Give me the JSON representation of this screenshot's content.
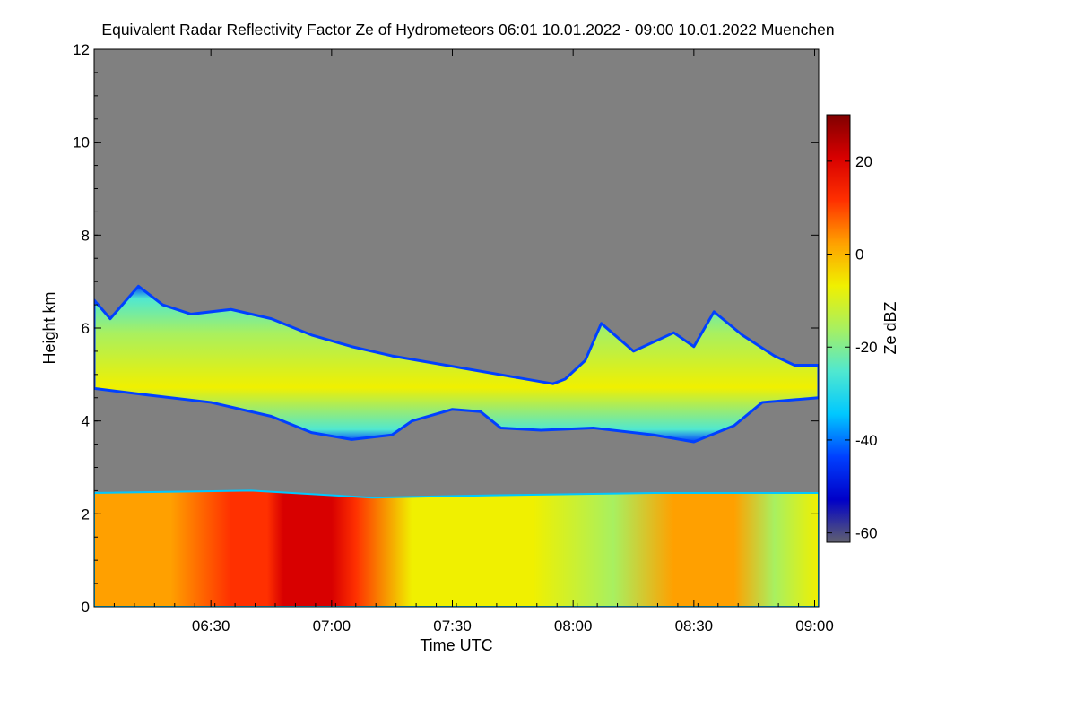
{
  "chart_data": {
    "type": "heatmap",
    "title": "Equivalent Radar Reflectivity Factor Ze of Hydrometeors   06:01 10.01.2022 - 09:00 10.01.2022 Muenchen",
    "xlabel": "Time UTC",
    "ylabel": "Height km",
    "x_range_minutes": [
      361,
      541
    ],
    "ylim": [
      0,
      12
    ],
    "x_ticks": [
      {
        "minute": 390,
        "label": "06:30"
      },
      {
        "minute": 420,
        "label": "07:00"
      },
      {
        "minute": 450,
        "label": "07:30"
      },
      {
        "minute": 480,
        "label": "08:00"
      },
      {
        "minute": 510,
        "label": "08:30"
      },
      {
        "minute": 540,
        "label": "09:00"
      }
    ],
    "y_ticks": [
      {
        "value": 0,
        "label": "0"
      },
      {
        "value": 2,
        "label": "2"
      },
      {
        "value": 4,
        "label": "4"
      },
      {
        "value": 6,
        "label": "6"
      },
      {
        "value": 8,
        "label": "8"
      },
      {
        "value": 10,
        "label": "10"
      },
      {
        "value": 12,
        "label": "12"
      }
    ],
    "colorbar": {
      "label": "Ze dBZ",
      "range": [
        -62,
        30
      ],
      "ticks": [
        {
          "value": 20,
          "label": "20"
        },
        {
          "value": 0,
          "label": "0"
        },
        {
          "value": -20,
          "label": "-20"
        },
        {
          "value": -40,
          "label": "-40"
        },
        {
          "value": -60,
          "label": "-60"
        }
      ],
      "colors": [
        "#606070",
        "#0000c8",
        "#0040ff",
        "#00c8ff",
        "#50e8d0",
        "#a8f060",
        "#f0f000",
        "#ffa000",
        "#ff3000",
        "#d80000",
        "#800000"
      ]
    },
    "background_color": "#808080",
    "layers": [
      {
        "name": "upper cloud layer",
        "base_height_km": [
          [
            361,
            4.7
          ],
          [
            375,
            4.55
          ],
          [
            390,
            4.4
          ],
          [
            405,
            4.1
          ],
          [
            415,
            3.75
          ],
          [
            425,
            3.6
          ],
          [
            435,
            3.7
          ],
          [
            440,
            4.0
          ],
          [
            450,
            4.25
          ],
          [
            457,
            4.2
          ],
          [
            462,
            3.85
          ],
          [
            472,
            3.8
          ],
          [
            485,
            3.85
          ],
          [
            500,
            3.7
          ],
          [
            510,
            3.55
          ],
          [
            520,
            3.9
          ],
          [
            527,
            4.4
          ],
          [
            541,
            4.5
          ]
        ],
        "top_height_km": [
          [
            361,
            6.6
          ],
          [
            365,
            6.2
          ],
          [
            372,
            6.9
          ],
          [
            378,
            6.5
          ],
          [
            385,
            6.3
          ],
          [
            395,
            6.4
          ],
          [
            405,
            6.2
          ],
          [
            415,
            5.85
          ],
          [
            425,
            5.6
          ],
          [
            435,
            5.4
          ],
          [
            445,
            5.25
          ],
          [
            455,
            5.1
          ],
          [
            465,
            4.95
          ],
          [
            475,
            4.8
          ],
          [
            478,
            4.9
          ],
          [
            483,
            5.3
          ],
          [
            487,
            6.1
          ],
          [
            495,
            5.5
          ],
          [
            505,
            5.9
          ],
          [
            510,
            5.6
          ],
          [
            515,
            6.35
          ],
          [
            522,
            5.85
          ],
          [
            530,
            5.4
          ],
          [
            535,
            5.2
          ],
          [
            541,
            5.2
          ]
        ],
        "core_ze_dbz": -10,
        "edge_ze_dbz": -40
      },
      {
        "name": "lower precipitation layer",
        "base_height_km": [
          [
            361,
            0
          ],
          [
            541,
            0
          ]
        ],
        "top_height_km": [
          [
            361,
            2.45
          ],
          [
            400,
            2.5
          ],
          [
            430,
            2.35
          ],
          [
            460,
            2.4
          ],
          [
            500,
            2.45
          ],
          [
            541,
            2.45
          ]
        ],
        "typical_ze_dbz": 0,
        "max_ze_dbz": 25,
        "max_core_minutes": [
          408,
          420
        ]
      }
    ]
  }
}
